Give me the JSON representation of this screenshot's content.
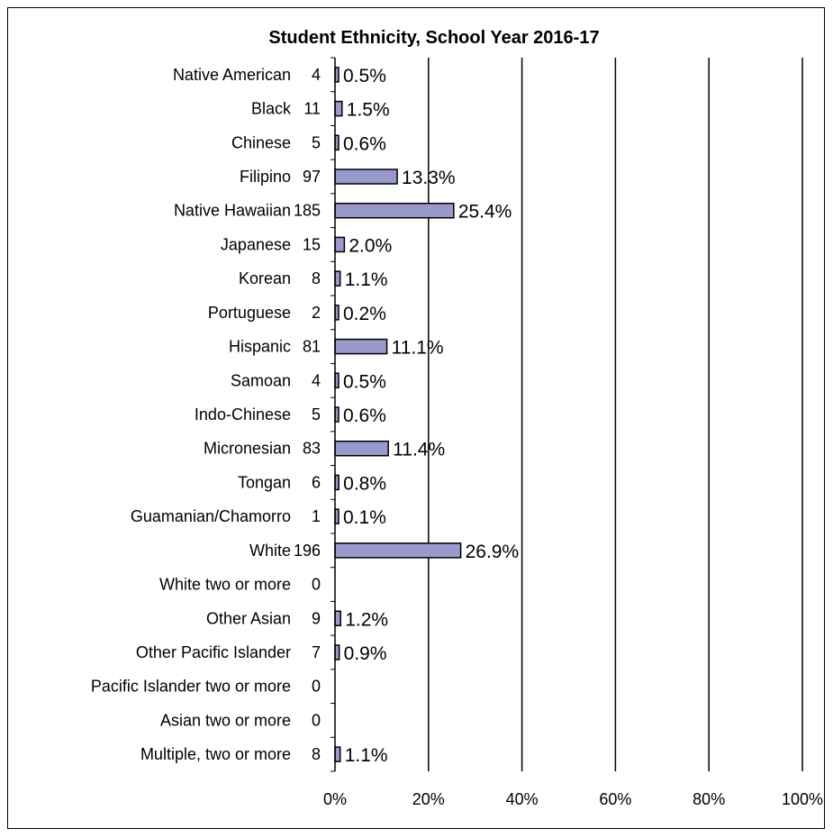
{
  "chart_data": {
    "type": "bar",
    "orientation": "horizontal",
    "title": "Student Ethnicity, School Year 2016-17",
    "xlabel": "",
    "ylabel": "",
    "xlim": [
      0,
      100
    ],
    "x_unit": "%",
    "x_ticks": [
      "0%",
      "20%",
      "40%",
      "60%",
      "80%",
      "100%"
    ],
    "grid": true,
    "legend": "none",
    "bar_color": "#9999cc",
    "categories": [
      {
        "label": "Native American",
        "count": "4",
        "percent": 0.5,
        "percent_label": "0.5%"
      },
      {
        "label": "Black",
        "count": "11",
        "percent": 1.5,
        "percent_label": "1.5%"
      },
      {
        "label": "Chinese",
        "count": "5",
        "percent": 0.6,
        "percent_label": "0.6%"
      },
      {
        "label": "Filipino",
        "count": "97",
        "percent": 13.3,
        "percent_label": "13.3%"
      },
      {
        "label": "Native Hawaiian",
        "count": "185",
        "percent": 25.4,
        "percent_label": "25.4%"
      },
      {
        "label": "Japanese",
        "count": "15",
        "percent": 2.0,
        "percent_label": "2.0%"
      },
      {
        "label": "Korean",
        "count": "8",
        "percent": 1.1,
        "percent_label": "1.1%"
      },
      {
        "label": "Portuguese",
        "count": "2",
        "percent": 0.2,
        "percent_label": "0.2%"
      },
      {
        "label": "Hispanic",
        "count": "81",
        "percent": 11.1,
        "percent_label": "11.1%"
      },
      {
        "label": "Samoan",
        "count": "4",
        "percent": 0.5,
        "percent_label": "0.5%"
      },
      {
        "label": "Indo-Chinese",
        "count": "5",
        "percent": 0.6,
        "percent_label": "0.6%"
      },
      {
        "label": "Micronesian",
        "count": "83",
        "percent": 11.4,
        "percent_label": "11.4%"
      },
      {
        "label": "Tongan",
        "count": "6",
        "percent": 0.8,
        "percent_label": "0.8%"
      },
      {
        "label": "Guamanian/Chamorro",
        "count": "1",
        "percent": 0.1,
        "percent_label": "0.1%"
      },
      {
        "label": "White",
        "count": "196",
        "percent": 26.9,
        "percent_label": "26.9%"
      },
      {
        "label": "White two or more",
        "count": "0",
        "percent": 0,
        "percent_label": ""
      },
      {
        "label": "Other Asian",
        "count": "9",
        "percent": 1.2,
        "percent_label": "1.2%"
      },
      {
        "label": "Other Pacific Islander",
        "count": "7",
        "percent": 0.9,
        "percent_label": "0.9%"
      },
      {
        "label": "Pacific Islander two or more",
        "count": "0",
        "percent": 0,
        "percent_label": ""
      },
      {
        "label": "Asian two or more",
        "count": "0",
        "percent": 0,
        "percent_label": ""
      },
      {
        "label": "Multiple, two or more",
        "count": "8",
        "percent": 1.1,
        "percent_label": "1.1%"
      }
    ]
  }
}
